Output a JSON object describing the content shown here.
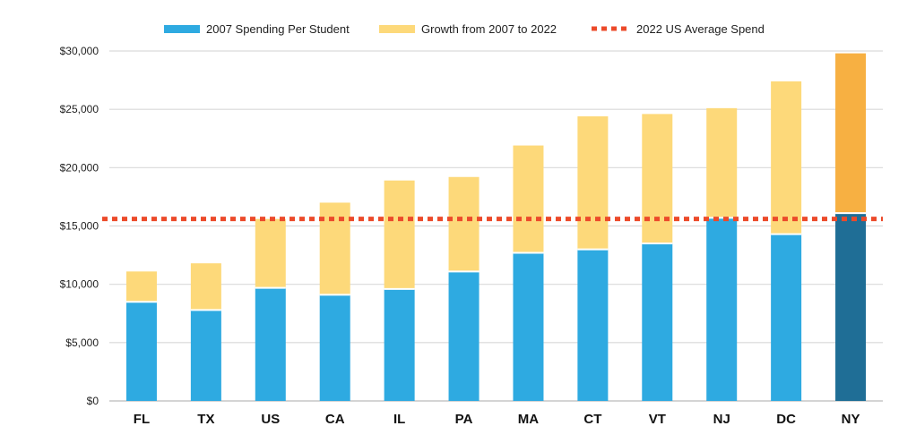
{
  "chart_data": {
    "type": "bar",
    "stacked": true,
    "categories": [
      "FL",
      "TX",
      "US",
      "CA",
      "IL",
      "PA",
      "MA",
      "CT",
      "VT",
      "NJ",
      "DC",
      "NY"
    ],
    "series": [
      {
        "name": "2007 Spending Per Student",
        "values": [
          8500,
          7800,
          9700,
          9100,
          9600,
          11100,
          12700,
          13000,
          13500,
          15700,
          14300,
          16100
        ],
        "color": "#2eaae1",
        "highlight_color": "#1f6e96"
      },
      {
        "name": "Growth from 2007 to 2022",
        "values": [
          2600,
          4000,
          5900,
          7900,
          9300,
          8100,
          9200,
          11400,
          11100,
          9400,
          13100,
          13700
        ],
        "color": "#fdd97a",
        "highlight_color": "#f7b042"
      }
    ],
    "reference_line": {
      "name": "2022 US Average Spend",
      "value": 15600,
      "color": "#ec4a2a"
    },
    "highlight_category": "NY",
    "ylim": [
      0,
      30000
    ],
    "yticks": [
      0,
      5000,
      10000,
      15000,
      20000,
      25000,
      30000
    ],
    "ytick_labels": [
      "$0",
      "$5,000",
      "$10,000",
      "$15,000",
      "$20,000",
      "$25,000",
      "$30,000"
    ],
    "xlabel": "",
    "ylabel": "",
    "title": "",
    "grid": true,
    "legend_position": "top"
  }
}
